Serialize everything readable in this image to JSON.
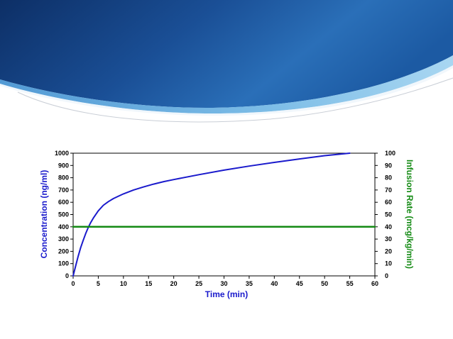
{
  "colors": {
    "banner_dark": "#0e3b7a",
    "banner_mid": "#1d5ea8",
    "banner_light": "#6fb6e4",
    "concentration_line": "#1a1acc",
    "infusion_line": "#138a13",
    "axis": "#000000"
  },
  "chart_data": {
    "type": "line",
    "xlabel": "Time (min)",
    "ylabel_left": "Concentration (ng/ml)",
    "ylabel_right": "Infusion Rate (mcg/kg/min)",
    "xlim": [
      0,
      60
    ],
    "ylim_left": [
      0,
      1000
    ],
    "ylim_right": [
      0,
      100
    ],
    "x_ticks": [
      0,
      5,
      10,
      15,
      20,
      25,
      30,
      35,
      40,
      45,
      50,
      55,
      60
    ],
    "y_left_ticks": [
      0,
      100,
      200,
      300,
      400,
      500,
      600,
      700,
      800,
      900,
      1000
    ],
    "y_right_ticks": [
      0,
      10,
      20,
      30,
      40,
      50,
      60,
      70,
      80,
      90,
      100
    ],
    "grid": false,
    "legend": "none",
    "series": [
      {
        "axis": "left",
        "color": "#1a1acc",
        "x": [
          0,
          0.5,
          1,
          1.5,
          2,
          2.5,
          3,
          3.5,
          4,
          5,
          6,
          7,
          8,
          9,
          10,
          12,
          14,
          16,
          18,
          20,
          25,
          30,
          35,
          40,
          45,
          50,
          55
        ],
        "y": [
          0,
          80,
          160,
          230,
          290,
          345,
          395,
          435,
          470,
          530,
          575,
          605,
          630,
          650,
          668,
          700,
          725,
          748,
          768,
          785,
          825,
          862,
          895,
          925,
          953,
          980,
          1000
        ]
      },
      {
        "axis": "right",
        "color": "#138a13",
        "x": [
          0,
          60
        ],
        "y": [
          40,
          40
        ]
      }
    ]
  }
}
